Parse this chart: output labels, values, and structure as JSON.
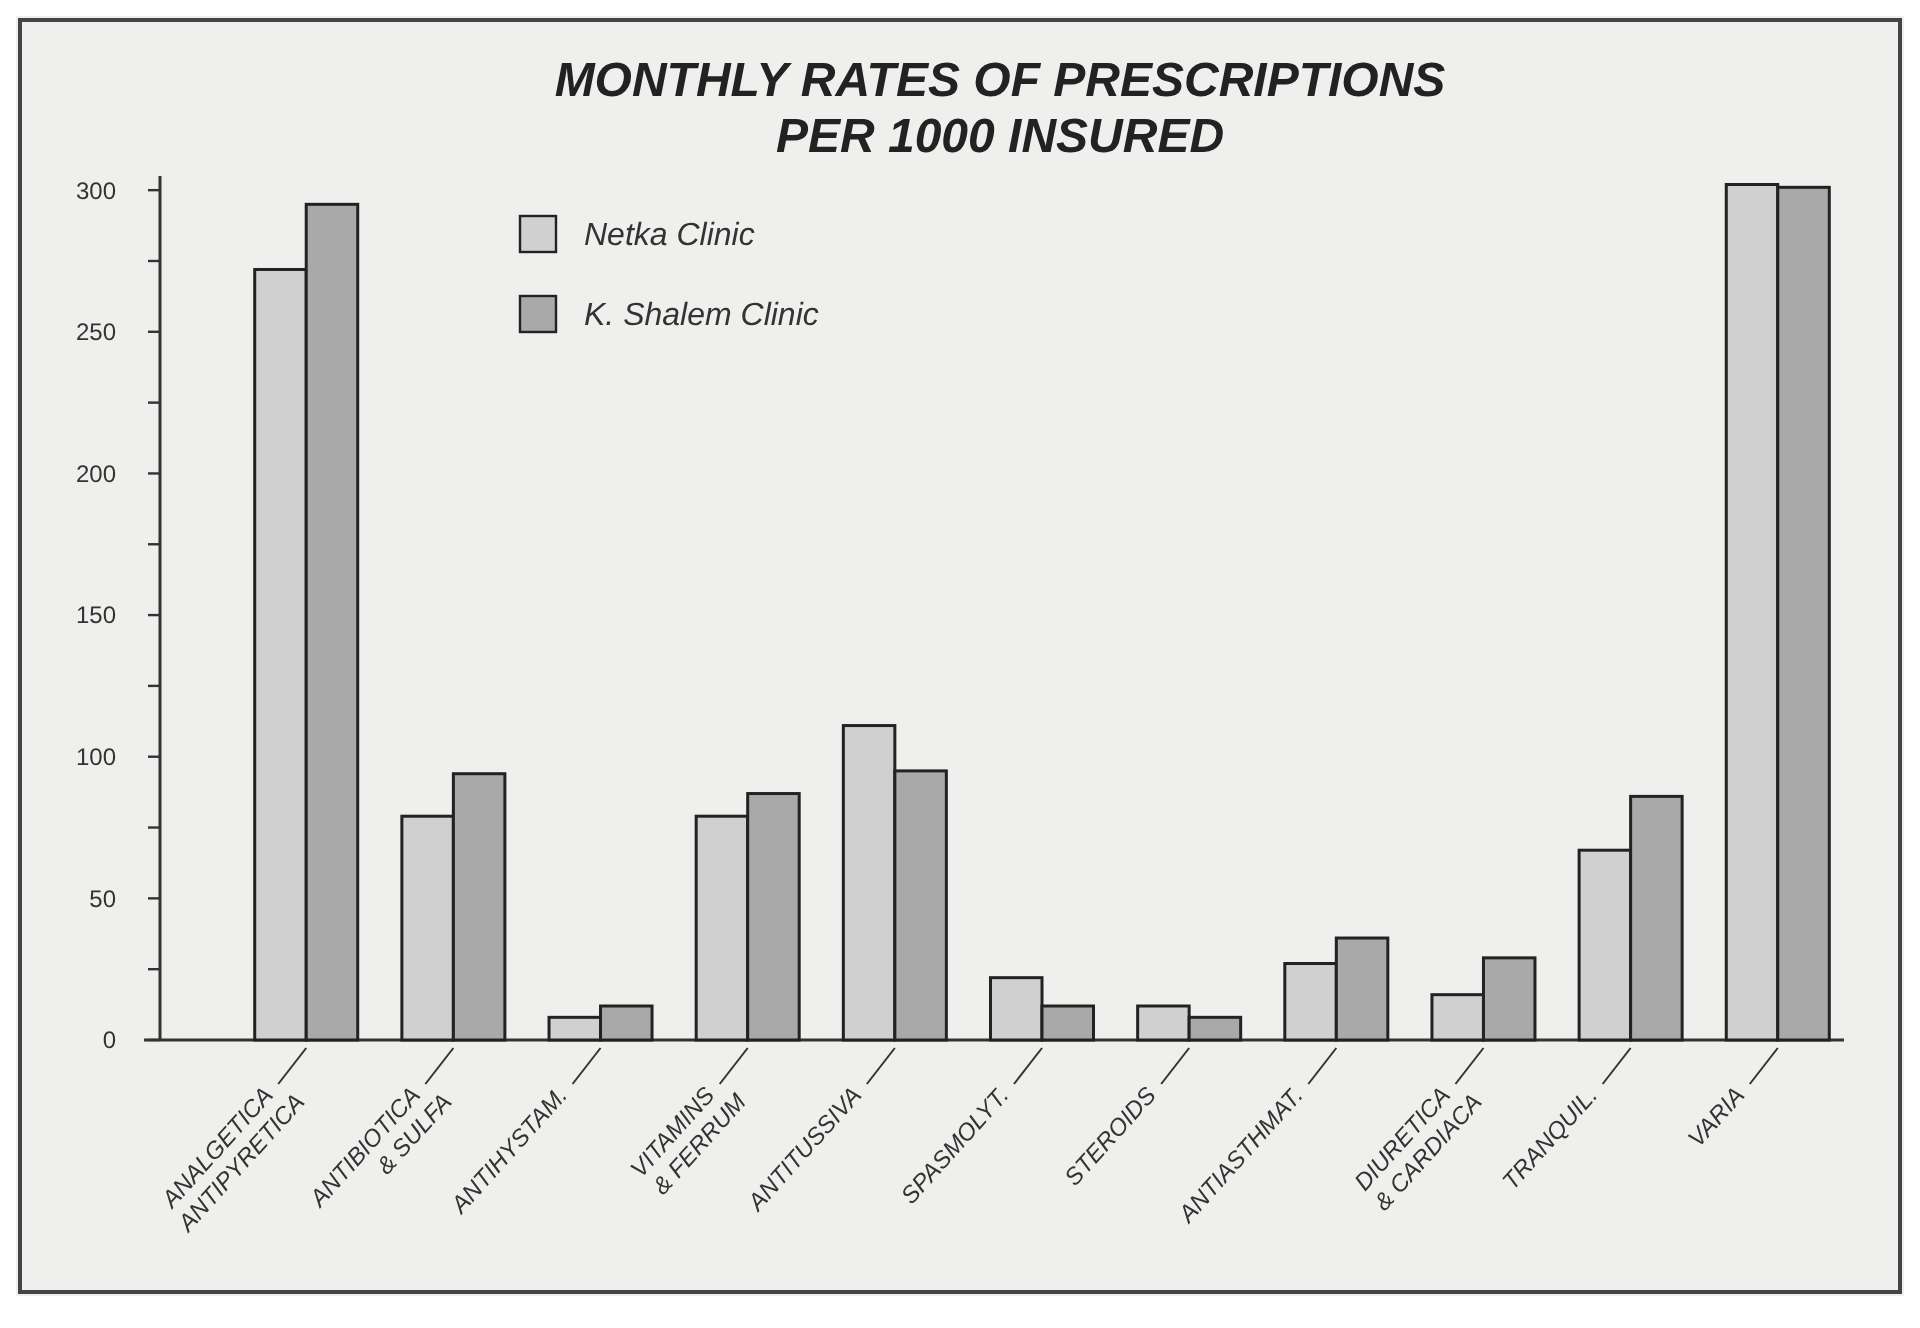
{
  "chart_data": {
    "type": "bar",
    "title": "MONTHLY RATES OF PRESCRIPTIONS\nPER 1000 INSURED",
    "categories": [
      "ANALGETICA\nANTIPYRETICA",
      "ANTIBIOTICA\n& SULFA",
      "ANTIHYSTAM.",
      "VITAMINS\n& FERRUM",
      "ANTITUSSIVA",
      "SPASMOLYT.",
      "STEROIDS",
      "ANTIASTHMAT.",
      "DIURETICA\n& CARDIACA",
      "TRANQUIL.",
      "VARIA"
    ],
    "series": [
      {
        "name": "Netka Clinic",
        "color": "#d0d0d0",
        "values": [
          272,
          79,
          8,
          79,
          111,
          22,
          12,
          27,
          16,
          67,
          302
        ]
      },
      {
        "name": "K. Shalem Clinic",
        "color": "#a9a9a9",
        "values": [
          295,
          94,
          12,
          87,
          95,
          12,
          8,
          36,
          29,
          86,
          301
        ]
      }
    ],
    "ylim": [
      0,
      305
    ],
    "yticks": [
      0,
      {
        "value": 25,
        "label": null
      },
      50,
      {
        "value": 75,
        "label": null
      },
      100,
      {
        "value": 125,
        "label": null
      },
      150,
      {
        "value": 175,
        "label": null
      },
      200,
      {
        "value": 225,
        "label": null
      },
      250,
      {
        "value": 275,
        "label": null
      },
      300
    ],
    "legend": "top left",
    "grid": false
  }
}
